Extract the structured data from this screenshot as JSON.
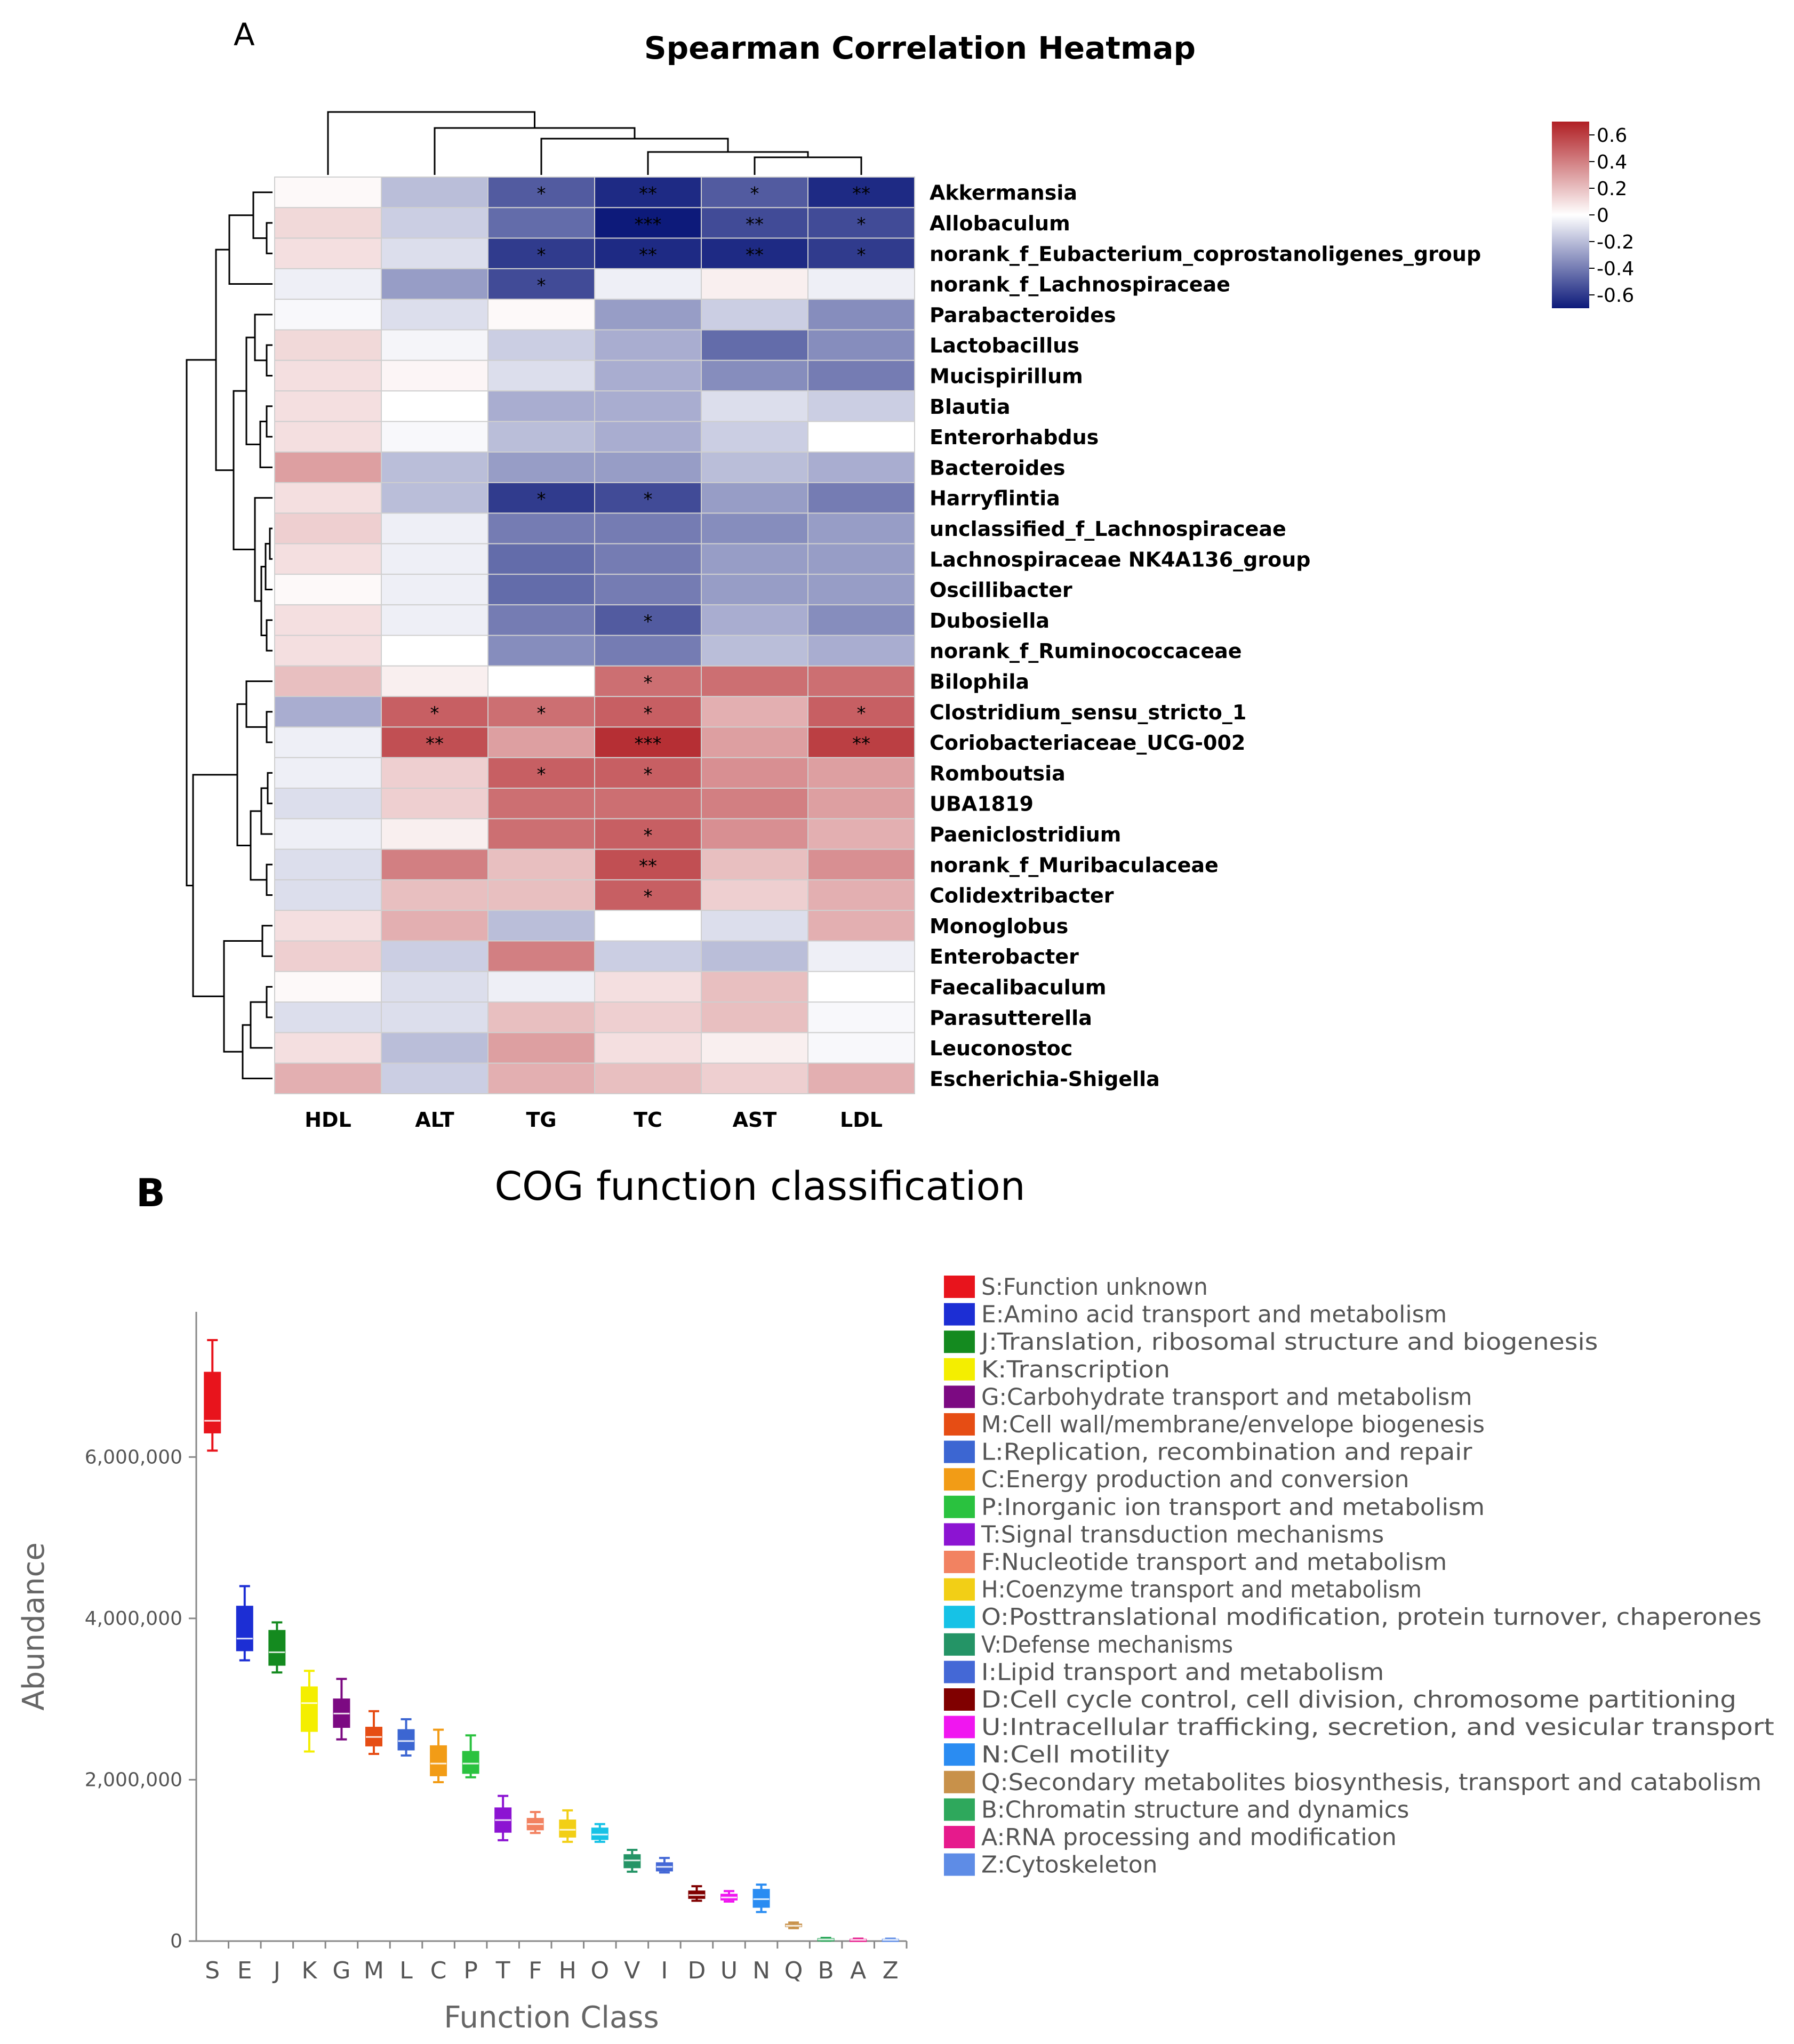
{
  "panels": {
    "a_letter": "A",
    "b_letter": "B"
  },
  "chart_data": [
    {
      "type": "heatmap",
      "title": "Spearman Correlation Heatmap",
      "columns": [
        "HDL",
        "ALT",
        "TG",
        "TC",
        "AST",
        "LDL"
      ],
      "rows": [
        "Akkermansia",
        "Allobaculum",
        "norank_f_Eubacterium_coprostanoligenes_group",
        "norank_f_Lachnospiraceae",
        "Parabacteroides",
        "Lactobacillus",
        "Mucispirillum",
        "Blautia",
        "Enterorhabdus",
        "Bacteroides",
        "Harryflintia",
        "unclassified_f_Lachnospiraceae",
        "Lachnospiraceae NK4A136_group",
        "Oscillibacter",
        "Dubosiella",
        "norank_f_Ruminococcaceae",
        "Bilophila",
        "Clostridium_sensu_stricto_1",
        "Coriobacteriaceae_UCG-002",
        "Romboutsia",
        "UBA1819",
        "Paeniclostridium",
        "norank_f_Muribaculaceae",
        "Colidextribacter",
        "Monoglobus",
        "Enterobacter",
        "Faecalibaculum",
        "Parasutterella",
        "Leuconostoc",
        "Escherichia-Shigella"
      ],
      "values": [
        [
          0.02,
          -0.2,
          -0.5,
          -0.65,
          -0.5,
          -0.65
        ],
        [
          0.12,
          -0.15,
          -0.45,
          -0.7,
          -0.55,
          -0.55
        ],
        [
          0.1,
          -0.1,
          -0.6,
          -0.65,
          -0.65,
          -0.6
        ],
        [
          -0.05,
          -0.3,
          -0.55,
          -0.05,
          0.05,
          -0.05
        ],
        [
          -0.02,
          -0.1,
          0.02,
          -0.3,
          -0.15,
          -0.35
        ],
        [
          0.12,
          -0.03,
          -0.15,
          -0.25,
          -0.45,
          -0.35
        ],
        [
          0.1,
          0.03,
          -0.1,
          -0.25,
          -0.35,
          -0.4
        ],
        [
          0.1,
          0.0,
          -0.25,
          -0.25,
          -0.1,
          -0.15
        ],
        [
          0.1,
          -0.02,
          -0.2,
          -0.25,
          -0.15,
          0.0
        ],
        [
          0.3,
          -0.2,
          -0.3,
          -0.3,
          -0.2,
          -0.25
        ],
        [
          0.1,
          -0.2,
          -0.6,
          -0.55,
          -0.3,
          -0.4
        ],
        [
          0.15,
          -0.05,
          -0.4,
          -0.4,
          -0.35,
          -0.3
        ],
        [
          0.1,
          -0.05,
          -0.45,
          -0.4,
          -0.3,
          -0.3
        ],
        [
          0.02,
          -0.05,
          -0.45,
          -0.4,
          -0.3,
          -0.3
        ],
        [
          0.1,
          -0.05,
          -0.4,
          -0.5,
          -0.25,
          -0.35
        ],
        [
          0.1,
          0.0,
          -0.35,
          -0.4,
          -0.2,
          -0.25
        ],
        [
          0.2,
          0.05,
          0.0,
          0.45,
          0.45,
          0.45
        ],
        [
          -0.25,
          0.5,
          0.45,
          0.5,
          0.25,
          0.5
        ],
        [
          -0.05,
          0.55,
          0.3,
          0.65,
          0.3,
          0.6
        ],
        [
          -0.05,
          0.15,
          0.5,
          0.5,
          0.35,
          0.3
        ],
        [
          -0.1,
          0.15,
          0.45,
          0.45,
          0.4,
          0.3
        ],
        [
          -0.05,
          0.05,
          0.45,
          0.5,
          0.35,
          0.25
        ],
        [
          -0.1,
          0.4,
          0.2,
          0.55,
          0.2,
          0.35
        ],
        [
          -0.1,
          0.2,
          0.2,
          0.5,
          0.15,
          0.25
        ],
        [
          0.1,
          0.25,
          -0.2,
          0.0,
          -0.1,
          0.25
        ],
        [
          0.15,
          -0.15,
          0.4,
          -0.15,
          -0.2,
          -0.05
        ],
        [
          0.02,
          -0.1,
          -0.05,
          0.1,
          0.2,
          0.0
        ],
        [
          -0.1,
          -0.1,
          0.2,
          0.15,
          0.2,
          -0.02
        ],
        [
          0.1,
          -0.2,
          0.3,
          0.1,
          0.05,
          -0.02
        ],
        [
          0.25,
          -0.15,
          0.25,
          0.2,
          0.15,
          0.25
        ]
      ],
      "significance": [
        [
          "",
          "",
          "*",
          "**",
          "*",
          "**"
        ],
        [
          "",
          "",
          "",
          "***",
          "**",
          "*"
        ],
        [
          "",
          "",
          "*",
          "**",
          "**",
          "*"
        ],
        [
          "",
          "",
          "*",
          "",
          "",
          ""
        ],
        [
          "",
          "",
          "",
          "",
          "",
          ""
        ],
        [
          "",
          "",
          "",
          "",
          "",
          ""
        ],
        [
          "",
          "",
          "",
          "",
          "",
          ""
        ],
        [
          "",
          "",
          "",
          "",
          "",
          ""
        ],
        [
          "",
          "",
          "",
          "",
          "",
          ""
        ],
        [
          "",
          "",
          "",
          "",
          "",
          ""
        ],
        [
          "",
          "",
          "*",
          "*",
          "",
          ""
        ],
        [
          "",
          "",
          "",
          "",
          "",
          ""
        ],
        [
          "",
          "",
          "",
          "",
          "",
          ""
        ],
        [
          "",
          "",
          "",
          "",
          "",
          ""
        ],
        [
          "",
          "",
          "",
          "*",
          "",
          ""
        ],
        [
          "",
          "",
          "",
          "",
          "",
          ""
        ],
        [
          "",
          "",
          "",
          "*",
          "",
          ""
        ],
        [
          "",
          "*",
          "*",
          "*",
          "",
          "*"
        ],
        [
          "",
          "**",
          "",
          "***",
          "",
          "**"
        ],
        [
          "",
          "",
          "*",
          "*",
          "",
          ""
        ],
        [
          "",
          "",
          "",
          "",
          "",
          ""
        ],
        [
          "",
          "",
          "",
          "*",
          "",
          ""
        ],
        [
          "",
          "",
          "",
          "**",
          "",
          ""
        ],
        [
          "",
          "",
          "",
          "*",
          "",
          ""
        ],
        [
          "",
          "",
          "",
          "",
          "",
          ""
        ],
        [
          "",
          "",
          "",
          "",
          "",
          ""
        ],
        [
          "",
          "",
          "",
          "",
          "",
          ""
        ],
        [
          "",
          "",
          "",
          "",
          "",
          ""
        ],
        [
          "",
          "",
          "",
          "",
          "",
          ""
        ],
        [
          "",
          "",
          "",
          "",
          "",
          ""
        ]
      ],
      "colorbar": {
        "ticks": [
          "0.6",
          "0.4",
          "0.2",
          "0",
          "-0.2",
          "-0.4",
          "-0.6"
        ],
        "range": [
          -0.7,
          0.7
        ],
        "low_color": "#0d1a7a",
        "mid_color": "#ffffff",
        "high_color": "#b01f24"
      }
    },
    {
      "type": "box",
      "title": "COG function classification",
      "xlabel": "Function Class",
      "ylabel": "Abundance",
      "ylim": [
        0,
        7800000
      ],
      "yticks": [
        0,
        2000000,
        4000000,
        6000000
      ],
      "ytick_labels": [
        "0",
        "2,000,000",
        "4,000,000",
        "6,000,000"
      ],
      "categories": [
        "S",
        "E",
        "J",
        "K",
        "G",
        "M",
        "L",
        "C",
        "P",
        "T",
        "F",
        "H",
        "O",
        "V",
        "I",
        "D",
        "U",
        "N",
        "Q",
        "B",
        "A",
        "Z"
      ],
      "boxes": [
        {
          "min": 6080000,
          "q1": 6300000,
          "median": 6450000,
          "q3": 7050000,
          "max": 7450000
        },
        {
          "min": 3480000,
          "q1": 3600000,
          "median": 3750000,
          "q3": 4150000,
          "max": 4400000
        },
        {
          "min": 3330000,
          "q1": 3420000,
          "median": 3580000,
          "q3": 3850000,
          "max": 3950000
        },
        {
          "min": 2350000,
          "q1": 2600000,
          "median": 2950000,
          "q3": 3150000,
          "max": 3350000
        },
        {
          "min": 2500000,
          "q1": 2650000,
          "median": 2820000,
          "q3": 3000000,
          "max": 3250000
        },
        {
          "min": 2320000,
          "q1": 2420000,
          "median": 2530000,
          "q3": 2650000,
          "max": 2850000
        },
        {
          "min": 2300000,
          "q1": 2370000,
          "median": 2480000,
          "q3": 2620000,
          "max": 2750000
        },
        {
          "min": 1970000,
          "q1": 2050000,
          "median": 2200000,
          "q3": 2420000,
          "max": 2620000
        },
        {
          "min": 2030000,
          "q1": 2080000,
          "median": 2200000,
          "q3": 2350000,
          "max": 2550000
        },
        {
          "min": 1250000,
          "q1": 1350000,
          "median": 1500000,
          "q3": 1650000,
          "max": 1800000
        },
        {
          "min": 1340000,
          "q1": 1380000,
          "median": 1450000,
          "q3": 1520000,
          "max": 1600000
        },
        {
          "min": 1230000,
          "q1": 1290000,
          "median": 1380000,
          "q3": 1500000,
          "max": 1620000
        },
        {
          "min": 1230000,
          "q1": 1260000,
          "median": 1320000,
          "q3": 1400000,
          "max": 1450000
        },
        {
          "min": 860000,
          "q1": 910000,
          "median": 1000000,
          "q3": 1070000,
          "max": 1130000
        },
        {
          "min": 850000,
          "q1": 870000,
          "median": 920000,
          "q3": 970000,
          "max": 1030000
        },
        {
          "min": 500000,
          "q1": 530000,
          "median": 570000,
          "q3": 620000,
          "max": 680000
        },
        {
          "min": 490000,
          "q1": 510000,
          "median": 540000,
          "q3": 580000,
          "max": 620000
        },
        {
          "min": 360000,
          "q1": 420000,
          "median": 520000,
          "q3": 640000,
          "max": 700000
        },
        {
          "min": 160000,
          "q1": 180000,
          "median": 190000,
          "q3": 210000,
          "max": 230000
        },
        {
          "min": 5000,
          "q1": 12000,
          "median": 20000,
          "q3": 30000,
          "max": 40000
        },
        {
          "min": 5000,
          "q1": 10000,
          "median": 15000,
          "q3": 22000,
          "max": 30000
        },
        {
          "min": 5000,
          "q1": 10000,
          "median": 15000,
          "q3": 22000,
          "max": 30000
        }
      ],
      "colors": [
        "#e8141c",
        "#1c2ed4",
        "#148a1f",
        "#f4ee00",
        "#7c0a82",
        "#e64d14",
        "#3c66d2",
        "#f29c16",
        "#2ac23f",
        "#8c14d2",
        "#f28261",
        "#f2cf16",
        "#16c2e6",
        "#249466",
        "#4468d6",
        "#800000",
        "#f016f0",
        "#2a8cf2",
        "#c8914a",
        "#2ea85c",
        "#e61a8c",
        "#5e8ce6"
      ],
      "legend": [
        "S:Function unknown",
        "E:Amino acid transport and metabolism",
        "J:Translation, ribosomal structure and biogenesis",
        "K:Transcription",
        "G:Carbohydrate transport and metabolism",
        "M:Cell wall/membrane/envelope biogenesis",
        "L:Replication, recombination and repair",
        "C:Energy production and conversion",
        "P:Inorganic ion transport and metabolism",
        "T:Signal transduction mechanisms",
        "F:Nucleotide transport and metabolism",
        "H:Coenzyme transport and metabolism",
        "O:Posttranslational modification, protein turnover, chaperones",
        "V:Defense mechanisms",
        "I:Lipid transport and metabolism",
        "D:Cell cycle control, cell division, chromosome partitioning",
        "U:Intracellular trafficking, secretion, and vesicular transport",
        "N:Cell motility",
        "Q:Secondary metabolites biosynthesis, transport and catabolism",
        "B:Chromatin structure and dynamics",
        "A:RNA processing and modification",
        "Z:Cytoskeleton"
      ]
    }
  ]
}
